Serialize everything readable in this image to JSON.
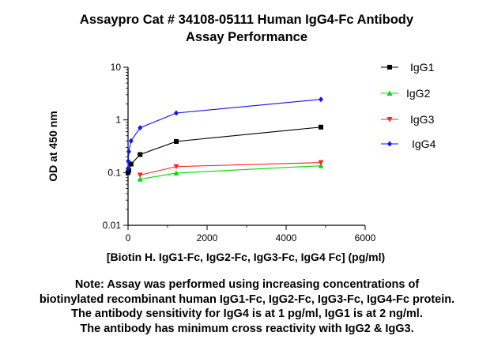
{
  "chart_data": {
    "type": "line",
    "title": [
      "Assaypro Cat # 34108-05111 Human IgG4-Fc Antibody",
      "Assay Performance"
    ],
    "xlabel": "[Biotin H. IgG1-Fc, IgG2-Fc, IgG3-Fc, IgG4 Fc] (pg/ml)",
    "ylabel": "OD at 450 nm",
    "xlim": [
      0,
      6000
    ],
    "ylim": [
      0.01,
      10
    ],
    "yscale": "log",
    "x_ticks": [
      0,
      2000,
      4000,
      6000
    ],
    "y_ticks": [
      0.01,
      0.1,
      1,
      10
    ],
    "x_tick_labels": [
      "0",
      "2000",
      "4000",
      "6000"
    ],
    "y_tick_labels": [
      "0.01",
      "0.1",
      "1",
      "10"
    ],
    "legend_position": "right",
    "grid": false,
    "series": [
      {
        "name": "IgG1",
        "color": "#000000",
        "marker": "square",
        "x": [
          0,
          19,
          76,
          305,
          1220,
          4880
        ],
        "y": [
          0.1,
          0.11,
          0.145,
          0.22,
          0.39,
          0.73
        ]
      },
      {
        "name": "IgG2",
        "color": "#00dd00",
        "marker": "triangle-up",
        "x": [
          305,
          1220,
          4880
        ],
        "y": [
          0.075,
          0.098,
          0.135
        ]
      },
      {
        "name": "IgG3",
        "color": "#ff2020",
        "marker": "triangle-down",
        "x": [
          305,
          1220,
          4880
        ],
        "y": [
          0.09,
          0.13,
          0.155
        ]
      },
      {
        "name": "IgG4",
        "color": "#1010ff",
        "marker": "diamond",
        "x": [
          0,
          5,
          19,
          76,
          305,
          1220,
          4880
        ],
        "y": [
          0.12,
          0.165,
          0.25,
          0.4,
          0.71,
          1.35,
          2.45
        ]
      }
    ]
  },
  "note": [
    "Note: Assay was performed using increasing concentrations of",
    "biotinylated recombinant human IgG1-Fc, IgG2-Fc, IgG3-Fc, IgG4-Fc protein.",
    "The antibody sensitivity for IgG4 is at 1 pg/ml, IgG1 is at 2 ng/ml.",
    "The antibody has minimum cross reactivity with IgG2 & IgG3."
  ]
}
